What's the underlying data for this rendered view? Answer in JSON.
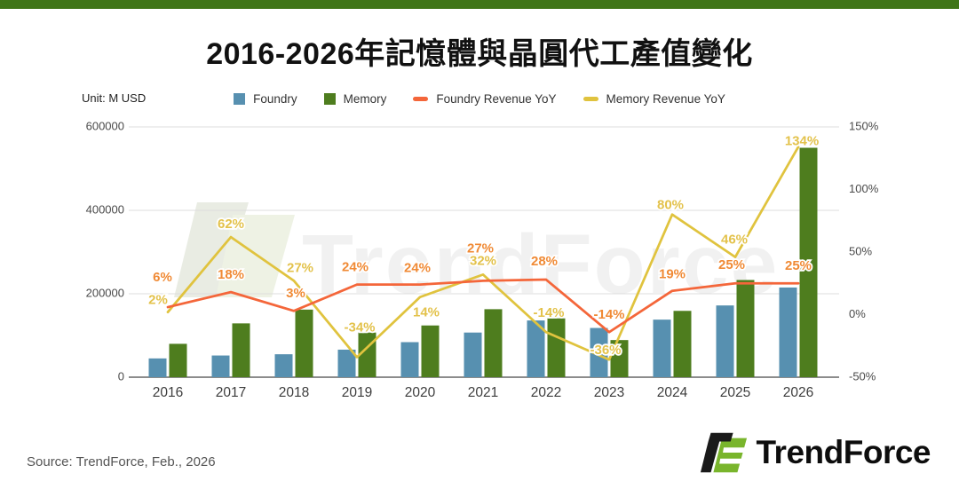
{
  "title": "2016-2026年記憶體與晶圓代工產值變化",
  "unit_label": "Unit: M USD",
  "source": "Source: TrendForce, Feb., 2026",
  "watermark_text": "TrendForce",
  "logo_text": "TrendForce",
  "colors": {
    "accent_bar": "#3f7517",
    "foundry_bar": "#5790b0",
    "memory_bar": "#4e7d1e",
    "foundry_line": "#f4663a",
    "memory_line": "#e0c33e",
    "foundry_label": "#f08a35",
    "memory_label": "#e3c24b",
    "gridline": "#dddddd",
    "axis_line": "#8c8c8c",
    "axis_text": "#4a4a4a",
    "x_text": "#3d3d3d",
    "logo_green": "#79b52c",
    "logo_black": "#1a1a1a"
  },
  "legend": [
    {
      "label": "Foundry",
      "marker": "square",
      "color": "#5790b0"
    },
    {
      "label": "Memory",
      "marker": "square",
      "color": "#4e7d1e"
    },
    {
      "label": "Foundry Revenue YoY",
      "marker": "dash",
      "color": "#f4663a"
    },
    {
      "label": "Memory Revenue YoY",
      "marker": "dash",
      "color": "#e0c33e"
    }
  ],
  "chart_data": {
    "type": "bar",
    "subtype": "combo-bar-line-dual-axis",
    "categories": [
      "2016",
      "2017",
      "2018",
      "2019",
      "2020",
      "2021",
      "2022",
      "2023",
      "2024",
      "2025",
      "2026"
    ],
    "series": [
      {
        "name": "Foundry",
        "type": "bar",
        "axis": "left",
        "values": [
          45000,
          52000,
          55000,
          66000,
          84000,
          107000,
          136000,
          118000,
          138000,
          172000,
          215000
        ]
      },
      {
        "name": "Memory",
        "type": "bar",
        "axis": "left",
        "values": [
          80000,
          129000,
          162000,
          107000,
          124000,
          163000,
          141000,
          89000,
          159000,
          233000,
          550000
        ]
      },
      {
        "name": "Foundry Revenue YoY",
        "type": "line",
        "axis": "right",
        "values": [
          6,
          18,
          3,
          24,
          24,
          27,
          28,
          -14,
          19,
          25,
          25
        ],
        "labels": [
          "6%",
          "18%",
          "3%",
          "24%",
          "24%",
          "27%",
          "28%",
          "-14%",
          "19%",
          "25%",
          "25%"
        ]
      },
      {
        "name": "Memory Revenue YoY",
        "type": "line",
        "axis": "right",
        "values": [
          2,
          62,
          27,
          -34,
          14,
          32,
          -14,
          -36,
          80,
          46,
          134
        ],
        "labels": [
          "2%",
          "62%",
          "27%",
          "-34%",
          "14%",
          "32%",
          "-14%",
          "-36%",
          "80%",
          "46%",
          "134%"
        ]
      }
    ],
    "left_axis": {
      "label": "M USD",
      "min": 0,
      "max": 600000,
      "ticks": [
        "600000",
        "400000",
        "200000",
        "0"
      ],
      "tick_values": [
        600000,
        400000,
        200000,
        0
      ]
    },
    "right_axis": {
      "min": -50,
      "max": 150,
      "ticks": [
        "150%",
        "100%",
        "50%",
        "0%",
        "-50%"
      ],
      "tick_values": [
        150,
        100,
        50,
        0,
        -50
      ]
    },
    "grid": "horizontal-on-left-ticks",
    "legend_position": "top-center",
    "title": "2016-2026年記憶體與晶圓代工產值變化"
  }
}
